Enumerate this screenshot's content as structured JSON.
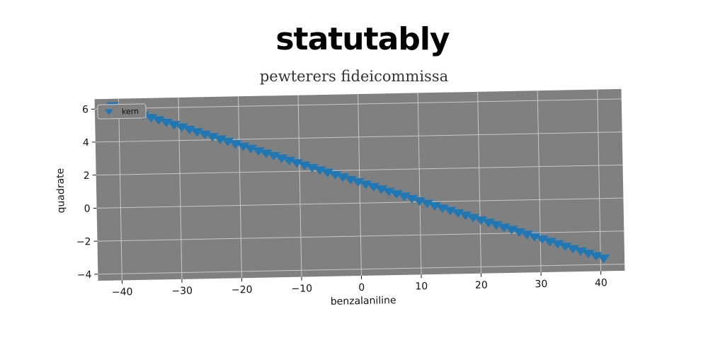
{
  "header": {
    "title": "statutably",
    "subtitle": "pewterers fideicommissa"
  },
  "colors": {
    "plot_background": "#808080",
    "grid": "#c8c8c8",
    "marker": "#1f77b4",
    "legend_background": "#808080",
    "legend_border": "#cccccc"
  },
  "chart_data": {
    "type": "scatter",
    "marker": "triangle-down",
    "xlabel": "benzalaniline",
    "ylabel": "quadrate",
    "xlim": [
      -44,
      44
    ],
    "ylim": [
      -4.4,
      6.6
    ],
    "xticks": [
      -40,
      -30,
      -20,
      -10,
      0,
      10,
      20,
      30,
      40
    ],
    "xtick_labels": [
      "−40",
      "−30",
      "−20",
      "−10",
      "0",
      "10",
      "20",
      "30",
      "40"
    ],
    "yticks": [
      -4,
      -2,
      0,
      2,
      4,
      6
    ],
    "ytick_labels": [
      "−4",
      "−2",
      "0",
      "2",
      "4",
      "6"
    ],
    "grid": true,
    "legend_position": "top-left",
    "series": [
      {
        "name": "kern",
        "x_start": -41,
        "x_end": 40.5,
        "y_start": 6.2,
        "y_end": -3.6,
        "n_points": 65
      }
    ]
  }
}
